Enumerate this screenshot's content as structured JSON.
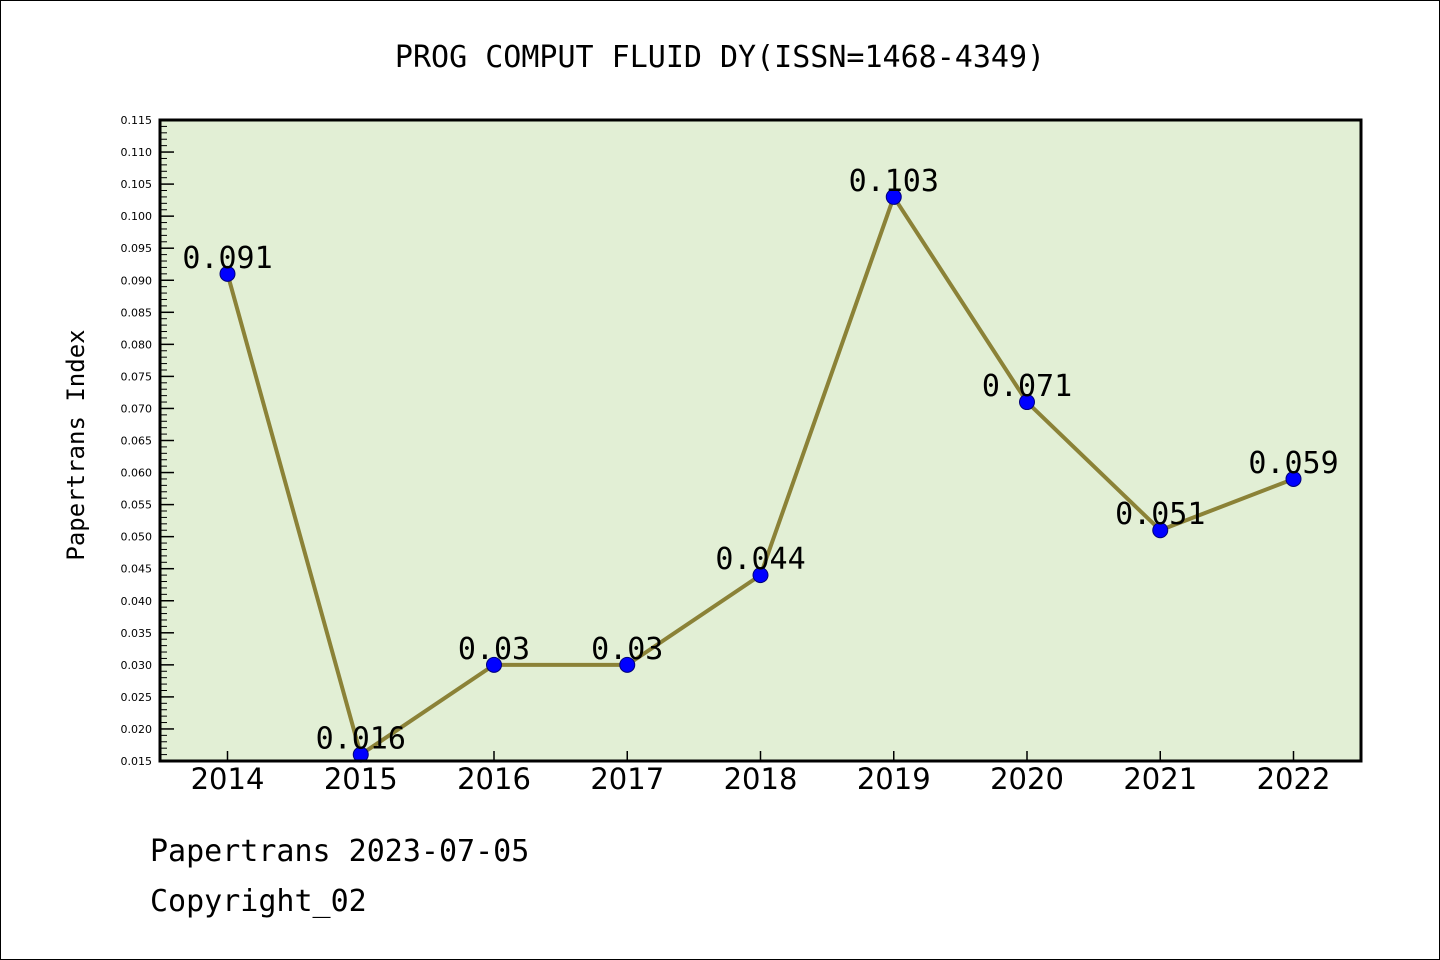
{
  "chart_data": {
    "type": "line",
    "title": "PROG COMPUT FLUID DY(ISSN=1468-4349)",
    "xlabel": "",
    "ylabel": "Papertrans Index",
    "categories": [
      "2014",
      "2015",
      "2016",
      "2017",
      "2018",
      "2019",
      "2020",
      "2021",
      "2022"
    ],
    "values": [
      0.091,
      0.016,
      0.03,
      0.03,
      0.044,
      0.103,
      0.071,
      0.051,
      0.059
    ],
    "data_labels": [
      "0.091",
      "0.016",
      "0.03",
      "0.03",
      "0.044",
      "0.103",
      "0.071",
      "0.051",
      "0.059"
    ],
    "ylim": [
      0.015,
      0.115
    ],
    "ytick_step": 0.005,
    "yticks": [
      "0.015",
      "0.020",
      "0.025",
      "0.030",
      "0.035",
      "0.040",
      "0.045",
      "0.050",
      "0.055",
      "0.060",
      "0.065",
      "0.070",
      "0.075",
      "0.080",
      "0.085",
      "0.090",
      "0.095",
      "0.100",
      "0.105",
      "0.110",
      "0.115"
    ],
    "grid": false,
    "legend": "none",
    "colors": {
      "line": "#8b8237",
      "marker": "#0000ff",
      "plot_background": "#e2efd5",
      "axis": "#000000"
    }
  },
  "footer": {
    "line1": "Papertrans 2023-07-05",
    "line2": "Copyright_02"
  }
}
